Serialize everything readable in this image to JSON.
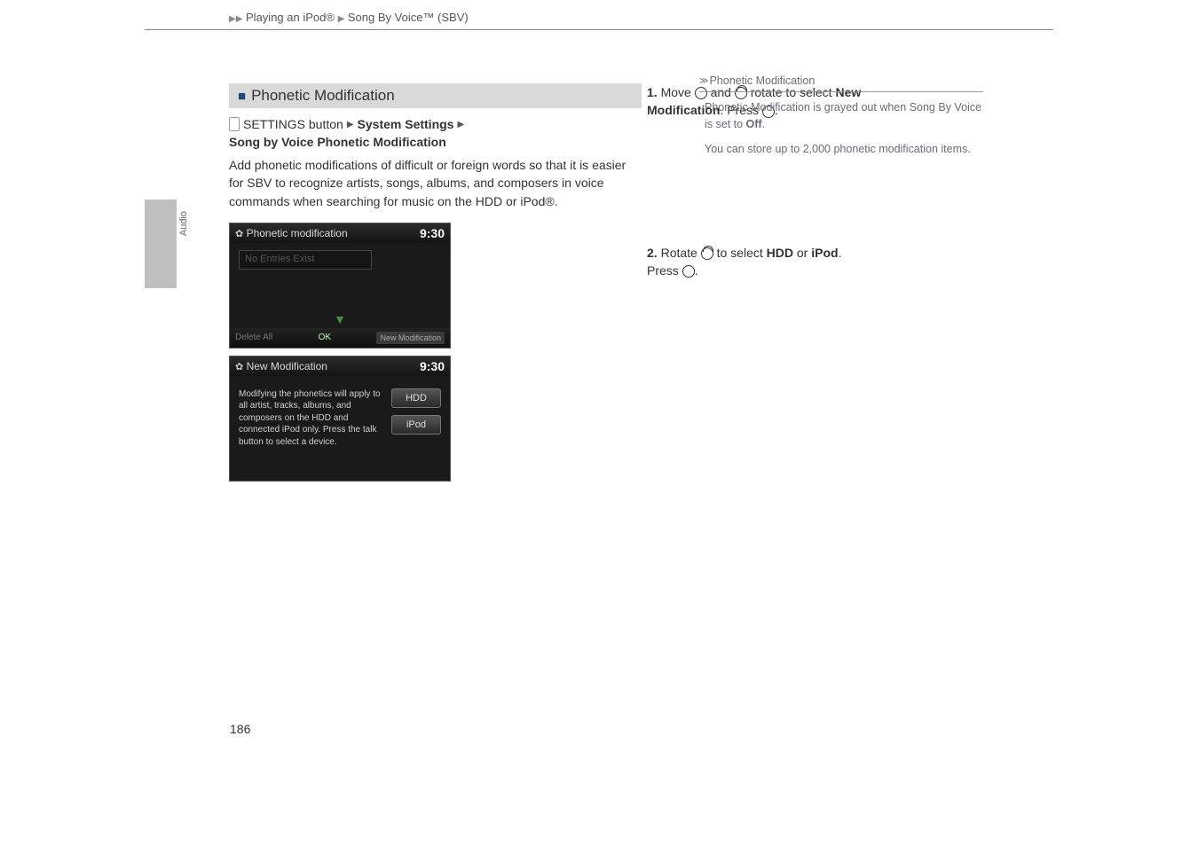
{
  "header": {
    "crumb1": "Playing an iPod®",
    "crumb2": "Song By Voice™ (SBV)"
  },
  "sideLabel": "Audio",
  "section": {
    "title": "Phonetic Modification"
  },
  "breadcrumb": {
    "btn": "SETTINGS button",
    "step1": "System Settings",
    "step2": "Song by Voice Phonetic Modification"
  },
  "intro": "Add phonetic modifications of difficult or foreign words so that it is easier for SBV to recognize artists, songs, albums, and composers in voice commands when searching for music on the HDD or iPod®.",
  "screen1": {
    "title": "Phonetic modification",
    "clock": "9:30",
    "entry": "No Entries Exist",
    "delete": "Delete All",
    "ok": "OK",
    "newmod": "New Modification"
  },
  "screen2": {
    "title": "New Modification",
    "clock": "9:30",
    "text": "Modifying the phonetics will apply to all artist, tracks, albums, and composers on the HDD and connected iPod only. Press the talk button to select a device.",
    "btnHdd": "HDD",
    "btnIpod": "iPod"
  },
  "steps": {
    "s1a": "1.",
    "s1b": "Move",
    "s1c": "and",
    "s1d": "rotate to select",
    "s1e": "New Modification",
    "s1f": ". Press",
    "s1g": ".",
    "s2a": "2.",
    "s2b": "Rotate",
    "s2c": "to select",
    "s2d": "HDD",
    "s2e": "or",
    "s2f": "iPod",
    "s2g": ". Press",
    "s2h": "."
  },
  "right": {
    "title": "Phonetic Modification",
    "p1a": "Phonetic Modification is grayed out when Song By Voice is set to ",
    "p1b": "Off",
    "p1c": ".",
    "p2": "You can store up to 2,000 phonetic modification items."
  },
  "pageNum": "186"
}
